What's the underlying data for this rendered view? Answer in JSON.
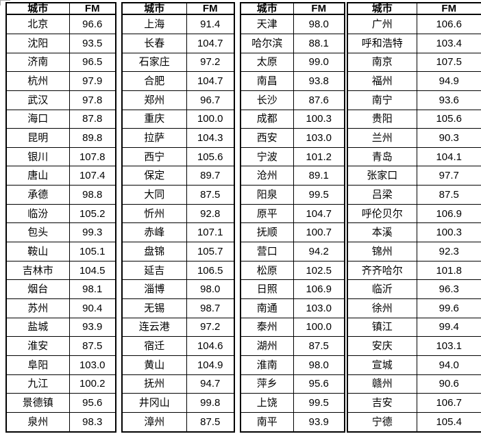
{
  "colors": {
    "background": "#ffffff",
    "text": "#000000",
    "table_border": "#000000"
  },
  "table": {
    "column_headers": [
      "城市",
      "FM"
    ],
    "groups": [
      {
        "rows": [
          [
            "北京",
            "96.6"
          ],
          [
            "沈阳",
            "93.5"
          ],
          [
            "济南",
            "96.5"
          ],
          [
            "杭州",
            "97.9"
          ],
          [
            "武汉",
            "97.8"
          ],
          [
            "海口",
            "87.8"
          ],
          [
            "昆明",
            "89.8"
          ],
          [
            "银川",
            "107.8"
          ],
          [
            "唐山",
            "107.4"
          ],
          [
            "承德",
            "98.8"
          ],
          [
            "临汾",
            "105.2"
          ],
          [
            "包头",
            "99.3"
          ],
          [
            "鞍山",
            "105.1"
          ],
          [
            "吉林市",
            "104.5"
          ],
          [
            "烟台",
            "98.1"
          ],
          [
            "苏州",
            "90.4"
          ],
          [
            "盐城",
            "93.9"
          ],
          [
            "淮安",
            "87.5"
          ],
          [
            "阜阳",
            "103.0"
          ],
          [
            "九江",
            "100.2"
          ],
          [
            "景德镇",
            "95.6"
          ],
          [
            "泉州",
            "98.3"
          ]
        ]
      },
      {
        "rows": [
          [
            "上海",
            "91.4"
          ],
          [
            "长春",
            "104.7"
          ],
          [
            "石家庄",
            "97.2"
          ],
          [
            "合肥",
            "104.7"
          ],
          [
            "郑州",
            "96.7"
          ],
          [
            "重庆",
            "100.0"
          ],
          [
            "拉萨",
            "104.3"
          ],
          [
            "西宁",
            "105.6"
          ],
          [
            "保定",
            "89.7"
          ],
          [
            "大同",
            "87.5"
          ],
          [
            "忻州",
            "92.8"
          ],
          [
            "赤峰",
            "107.1"
          ],
          [
            "盘锦",
            "105.7"
          ],
          [
            "延吉",
            "106.5"
          ],
          [
            "淄博",
            "98.0"
          ],
          [
            "无锡",
            "98.7"
          ],
          [
            "连云港",
            "97.2"
          ],
          [
            "宿迁",
            "104.6"
          ],
          [
            "黄山",
            "104.9"
          ],
          [
            "抚州",
            "94.7"
          ],
          [
            "井冈山",
            "99.8"
          ],
          [
            "漳州",
            "87.5"
          ]
        ]
      },
      {
        "rows": [
          [
            "天津",
            "98.0"
          ],
          [
            "哈尔滨",
            "88.1"
          ],
          [
            "太原",
            "99.0"
          ],
          [
            "南昌",
            "93.8"
          ],
          [
            "长沙",
            "87.6"
          ],
          [
            "成都",
            "100.3"
          ],
          [
            "西安",
            "103.0"
          ],
          [
            "宁波",
            "101.2"
          ],
          [
            "沧州",
            "89.1"
          ],
          [
            "阳泉",
            "99.5"
          ],
          [
            "原平",
            "104.7"
          ],
          [
            "抚顺",
            "100.7"
          ],
          [
            "营口",
            "94.2"
          ],
          [
            "松原",
            "102.5"
          ],
          [
            "日照",
            "106.9"
          ],
          [
            "南通",
            "103.0"
          ],
          [
            "泰州",
            "100.0"
          ],
          [
            "湖州",
            "87.5"
          ],
          [
            "淮南",
            "98.0"
          ],
          [
            "萍乡",
            "95.6"
          ],
          [
            "上饶",
            "99.5"
          ],
          [
            "南平",
            "93.9"
          ]
        ]
      },
      {
        "rows": [
          [
            "广州",
            "106.6"
          ],
          [
            "呼和浩特",
            "103.4"
          ],
          [
            "南京",
            "107.5"
          ],
          [
            "福州",
            "94.9"
          ],
          [
            "南宁",
            "93.6"
          ],
          [
            "贵阳",
            "105.6"
          ],
          [
            "兰州",
            "90.3"
          ],
          [
            "青岛",
            "104.1"
          ],
          [
            "张家口",
            "97.7"
          ],
          [
            "吕梁",
            "87.5"
          ],
          [
            "呼伦贝尔",
            "106.9"
          ],
          [
            "本溪",
            "100.3"
          ],
          [
            "锦州",
            "92.3"
          ],
          [
            "齐齐哈尔",
            "101.8"
          ],
          [
            "临沂",
            "96.3"
          ],
          [
            "徐州",
            "99.6"
          ],
          [
            "镇江",
            "99.4"
          ],
          [
            "安庆",
            "103.1"
          ],
          [
            "宣城",
            "94.0"
          ],
          [
            "赣州",
            "90.6"
          ],
          [
            "吉安",
            "106.7"
          ],
          [
            "宁德",
            "105.4"
          ]
        ]
      }
    ]
  }
}
